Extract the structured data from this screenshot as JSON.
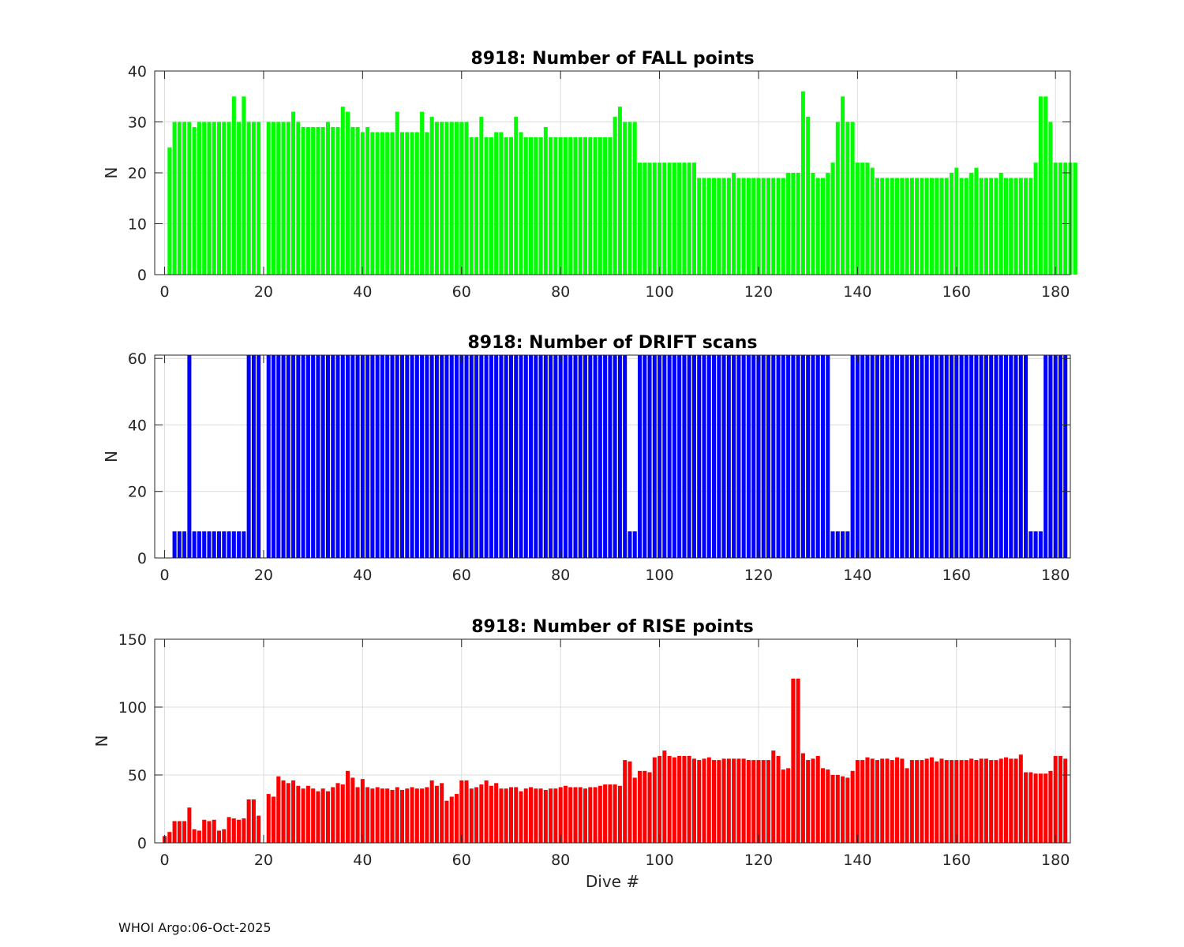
{
  "footer": "WHOI Argo:06-Oct-2025",
  "chart_data": [
    {
      "type": "bar",
      "title": "8918: Number of FALL points",
      "xlabel": "",
      "ylabel": "N",
      "xlim": [
        -2,
        183
      ],
      "ylim": [
        0,
        40
      ],
      "xticks": [
        0,
        20,
        40,
        60,
        80,
        100,
        120,
        140,
        160,
        180
      ],
      "yticks": [
        0,
        10,
        20,
        30,
        40
      ],
      "color": "#00ff00",
      "x_start": 0,
      "values": [
        0,
        25,
        30,
        30,
        30,
        30,
        29,
        30,
        30,
        30,
        30,
        30,
        30,
        30,
        35,
        30,
        35,
        30,
        30,
        30,
        0,
        30,
        30,
        30,
        30,
        30,
        32,
        30,
        29,
        29,
        29,
        29,
        29,
        30,
        29,
        29,
        33,
        32,
        29,
        29,
        28,
        29,
        28,
        28,
        28,
        28,
        28,
        32,
        28,
        28,
        28,
        28,
        32,
        28,
        31,
        30,
        30,
        30,
        30,
        30,
        30,
        30,
        27,
        27,
        31,
        27,
        27,
        28,
        28,
        27,
        27,
        31,
        28,
        27,
        27,
        27,
        27,
        29,
        27,
        27,
        27,
        27,
        27,
        27,
        27,
        27,
        27,
        27,
        27,
        27,
        27,
        31,
        33,
        30,
        30,
        30,
        22,
        22,
        22,
        22,
        22,
        22,
        22,
        22,
        22,
        22,
        22,
        22,
        19,
        19,
        19,
        19,
        19,
        19,
        19,
        20,
        19,
        19,
        19,
        19,
        19,
        19,
        19,
        19,
        19,
        19,
        20,
        20,
        20,
        36,
        31,
        20,
        19,
        19,
        20,
        22,
        30,
        35,
        30,
        30,
        22,
        22,
        22,
        21,
        19,
        19,
        19,
        19,
        19,
        19,
        19,
        19,
        19,
        19,
        19,
        19,
        19,
        19,
        19,
        20,
        21,
        19,
        19,
        20,
        21,
        19,
        19,
        19,
        19,
        20,
        19,
        19,
        19,
        19,
        19,
        19,
        22,
        35,
        35,
        30,
        22,
        22,
        22,
        22,
        22
      ]
    },
    {
      "type": "bar",
      "title": "8918: Number of DRIFT scans",
      "xlabel": "",
      "ylabel": "N",
      "xlim": [
        -2,
        183
      ],
      "ylim": [
        0,
        61
      ],
      "xticks": [
        0,
        20,
        40,
        60,
        80,
        100,
        120,
        140,
        160,
        180
      ],
      "yticks": [
        0,
        20,
        40,
        60
      ],
      "color": "#0000ff",
      "x_start": 0,
      "values": [
        0,
        0,
        8,
        8,
        8,
        61,
        8,
        8,
        8,
        8,
        8,
        8,
        8,
        8,
        8,
        8,
        8,
        61,
        61,
        61,
        0,
        61,
        61,
        61,
        61,
        61,
        61,
        61,
        61,
        61,
        61,
        61,
        61,
        61,
        61,
        61,
        61,
        61,
        61,
        61,
        61,
        61,
        61,
        61,
        61,
        61,
        61,
        61,
        61,
        61,
        61,
        61,
        61,
        61,
        61,
        61,
        61,
        61,
        61,
        61,
        61,
        61,
        61,
        61,
        61,
        61,
        61,
        61,
        61,
        61,
        61,
        61,
        61,
        61,
        61,
        61,
        61,
        61,
        61,
        61,
        61,
        61,
        61,
        61,
        61,
        61,
        61,
        61,
        61,
        61,
        61,
        61,
        61,
        61,
        8,
        8,
        61,
        61,
        61,
        61,
        61,
        61,
        61,
        61,
        61,
        61,
        61,
        61,
        61,
        61,
        61,
        61,
        61,
        61,
        61,
        61,
        61,
        61,
        61,
        61,
        61,
        61,
        61,
        61,
        61,
        61,
        61,
        61,
        61,
        61,
        61,
        61,
        61,
        61,
        61,
        8,
        8,
        8,
        8,
        61,
        61,
        61,
        61,
        61,
        61,
        61,
        61,
        61,
        61,
        61,
        61,
        61,
        61,
        61,
        61,
        61,
        61,
        61,
        61,
        61,
        61,
        61,
        61,
        61,
        61,
        61,
        61,
        61,
        61,
        61,
        61,
        61,
        61,
        61,
        61,
        8,
        8,
        8,
        61,
        61,
        61,
        61,
        61
      ]
    },
    {
      "type": "bar",
      "title": "8918: Number of RISE points",
      "xlabel": "Dive #",
      "ylabel": "N",
      "xlim": [
        -2,
        183
      ],
      "ylim": [
        0,
        150
      ],
      "xticks": [
        0,
        20,
        40,
        60,
        80,
        100,
        120,
        140,
        160,
        180
      ],
      "yticks": [
        0,
        50,
        100,
        150
      ],
      "color": "#ff0000",
      "x_start": 0,
      "values": [
        5,
        8,
        16,
        16,
        16,
        26,
        10,
        9,
        17,
        16,
        17,
        9,
        10,
        19,
        18,
        17,
        18,
        32,
        32,
        20,
        0,
        36,
        34,
        49,
        46,
        44,
        46,
        42,
        40,
        42,
        40,
        38,
        40,
        38,
        41,
        44,
        43,
        53,
        48,
        41,
        47,
        41,
        40,
        41,
        40,
        40,
        39,
        41,
        39,
        40,
        41,
        40,
        40,
        41,
        46,
        42,
        44,
        31,
        34,
        36,
        46,
        46,
        40,
        41,
        43,
        46,
        42,
        44,
        40,
        40,
        41,
        41,
        38,
        40,
        41,
        40,
        40,
        39,
        40,
        40,
        41,
        42,
        41,
        41,
        41,
        40,
        41,
        41,
        42,
        43,
        43,
        43,
        42,
        61,
        60,
        48,
        53,
        53,
        52,
        63,
        64,
        68,
        64,
        63,
        64,
        64,
        64,
        62,
        61,
        62,
        63,
        61,
        61,
        62,
        62,
        62,
        62,
        62,
        61,
        61,
        61,
        61,
        61,
        68,
        64,
        54,
        55,
        121,
        121,
        66,
        61,
        62,
        64,
        55,
        54,
        50,
        50,
        49,
        48,
        53,
        61,
        61,
        63,
        62,
        61,
        62,
        62,
        61,
        63,
        62,
        55,
        61,
        61,
        61,
        62,
        63,
        60,
        62,
        61,
        61,
        61,
        61,
        61,
        62,
        61,
        62,
        62,
        61,
        61,
        62,
        63,
        62,
        62,
        65,
        52,
        52,
        51,
        51,
        51,
        53,
        64,
        64,
        62
      ]
    }
  ]
}
